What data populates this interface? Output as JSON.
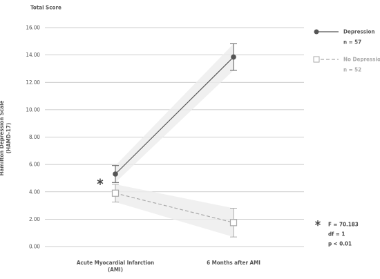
{
  "chart_data": {
    "type": "line",
    "title": "Total Score",
    "y_label": "Hamilton Depression Scale (HAMD-17)",
    "categories": [
      "Acute Myocardial Infarction (AMI)",
      "6 Months after AMI"
    ],
    "series": [
      {
        "name": "Depression",
        "n_label": "n = 57",
        "color": "#555555",
        "marker": "circle",
        "dashed": false,
        "values": [
          5.3,
          13.85
        ],
        "errors": [
          0.62,
          0.97
        ]
      },
      {
        "name": "No Depression",
        "n_label": "n = 52",
        "color": "#aaaaaa",
        "marker": "square",
        "dashed": true,
        "values": [
          3.9,
          1.75
        ],
        "errors": [
          0.65,
          1.05
        ]
      }
    ],
    "ylim": [
      0,
      16
    ],
    "yticks": [
      {
        "value": 0,
        "label": "0.00"
      },
      {
        "value": 2,
        "label": "2.00"
      },
      {
        "value": 4,
        "label": "4.00"
      },
      {
        "value": 6,
        "label": "6.00"
      },
      {
        "value": 8,
        "label": "8.00"
      },
      {
        "value": 10,
        "label": "10.00"
      },
      {
        "value": 12,
        "label": "12.00"
      },
      {
        "value": 14,
        "label": "14.00"
      },
      {
        "value": 16,
        "label": "16.00"
      }
    ],
    "grid": true,
    "legend": "right",
    "significance_mark": "*",
    "stats": {
      "symbol": "*",
      "lines": [
        "F = 70.183",
        "df = 1",
        "p < 0.01"
      ]
    }
  }
}
